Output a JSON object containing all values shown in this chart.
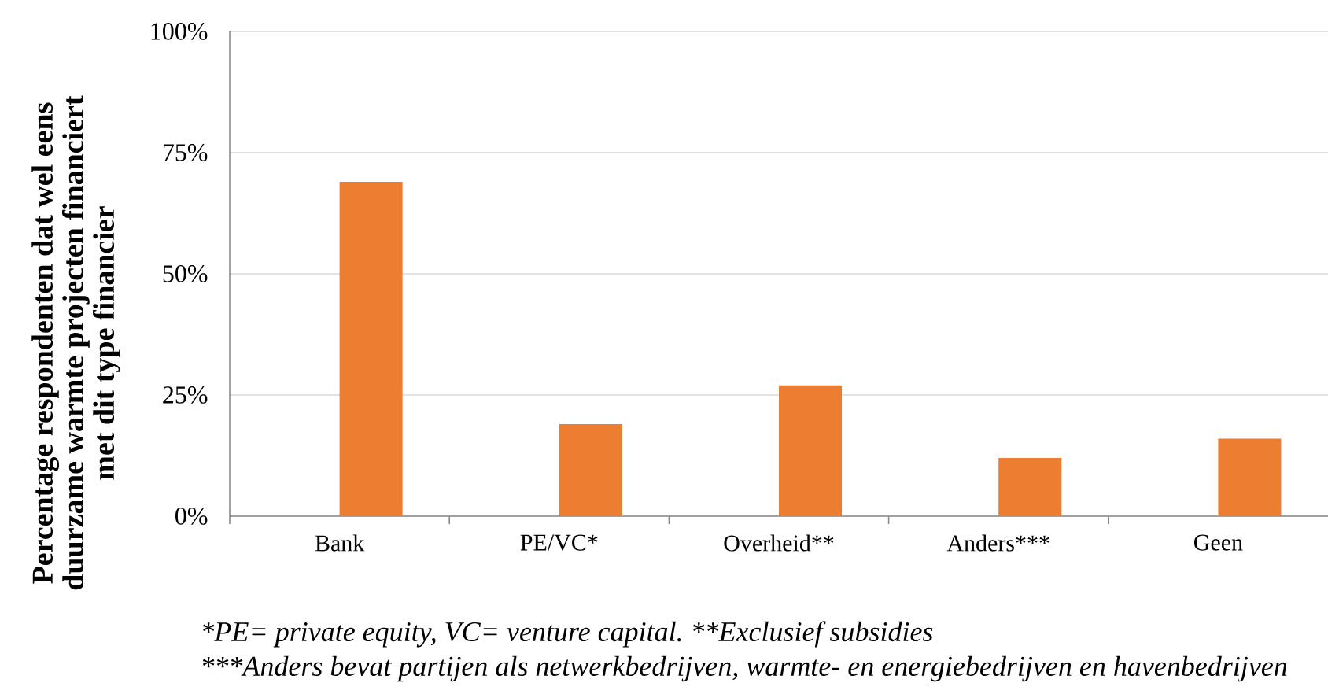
{
  "chart_data": {
    "type": "bar",
    "categories": [
      "Bank",
      "PE/VC*",
      "Overheid**",
      "Anders***",
      "Geen"
    ],
    "values": [
      69,
      19,
      27,
      12,
      16
    ],
    "color": "#ed7d31",
    "ylabel": "Percentage respondenten dat wel eens duurzame warmte projecten financiert met dit type financier",
    "ylim": [
      0,
      100
    ],
    "yticks": [
      {
        "value": 0,
        "label": "0%"
      },
      {
        "value": 25,
        "label": "25%"
      },
      {
        "value": 50,
        "label": "50%"
      },
      {
        "value": 75,
        "label": "75%"
      },
      {
        "value": 100,
        "label": "100%"
      }
    ],
    "grid": "y",
    "annotations": [
      "*PE= private equity, VC= venture capital.",
      "**Exclusief subsidies",
      "***Anders bevat partijen als netwerkbedrijven, warmte- en energiebedrijven en havenbedrijven"
    ]
  }
}
